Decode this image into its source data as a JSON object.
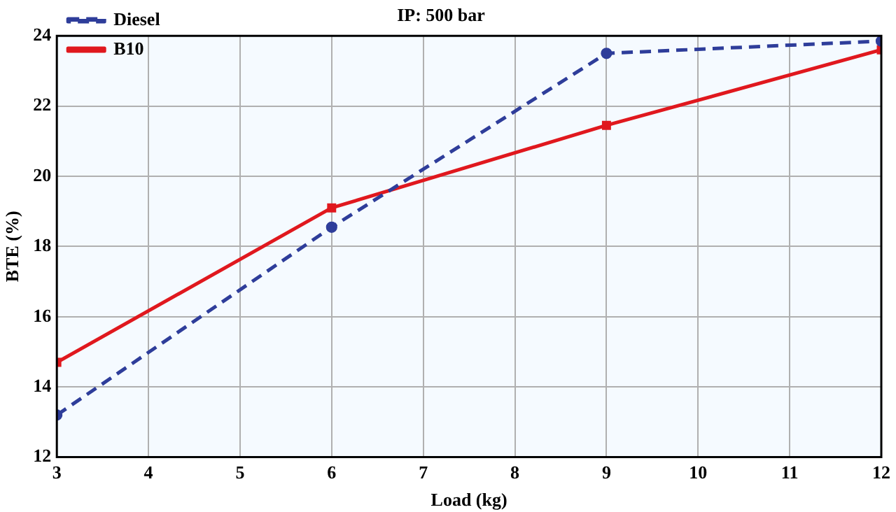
{
  "chart_data": {
    "type": "line",
    "title": "IP: 500 bar",
    "xlabel": "Load (kg)",
    "ylabel": "BTE (%)",
    "x": [
      3,
      6,
      9,
      12
    ],
    "series": [
      {
        "name": "Diesel",
        "color": "#2e3d9a",
        "values": [
          13.2,
          18.55,
          23.5,
          23.85
        ],
        "marker": "circle",
        "line_style": "dashed"
      },
      {
        "name": "B10",
        "color": "#e0181e",
        "values": [
          14.7,
          19.1,
          21.45,
          23.6
        ],
        "marker": "square",
        "line_style": "solid"
      }
    ],
    "xlim": [
      3,
      12
    ],
    "xticks": [
      3,
      4,
      5,
      6,
      7,
      8,
      9,
      10,
      11,
      12
    ],
    "ylim": [
      12,
      24
    ],
    "yticks": [
      12,
      14,
      16,
      18,
      20,
      22,
      24
    ],
    "grid": true,
    "legend": "top left"
  }
}
